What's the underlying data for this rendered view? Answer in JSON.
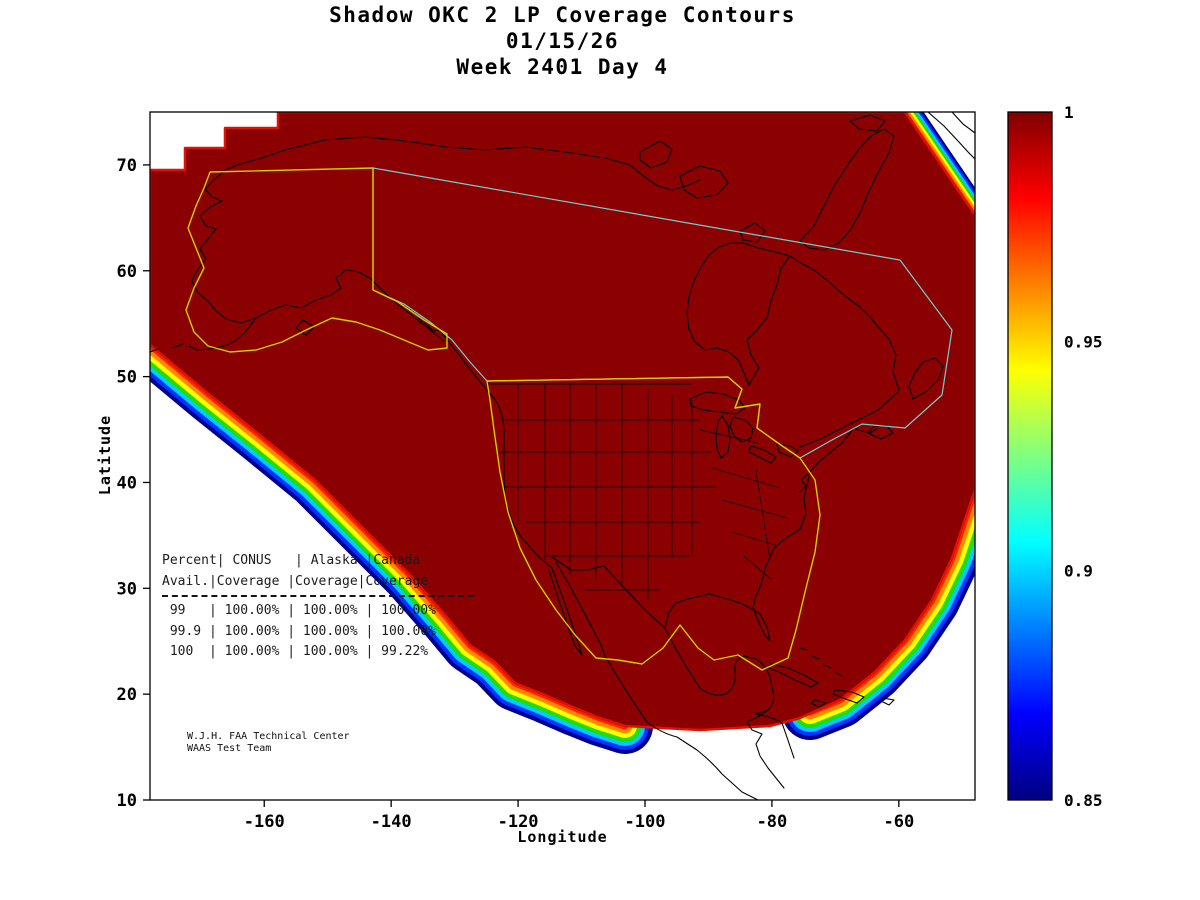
{
  "chart_data": {
    "type": "heatmap",
    "title": "Shadow OKC 2 LP Coverage Contours",
    "date": "01/15/26",
    "week_day": "Week 2401 Day 4",
    "xlabel": "Longitude",
    "ylabel": "Latitude",
    "x_axis": {
      "ticks": [
        -160,
        -140,
        -120,
        -100,
        -80,
        -60
      ],
      "range": [
        -178,
        -48
      ]
    },
    "y_axis": {
      "ticks": [
        70,
        60,
        50,
        40,
        30,
        20,
        10
      ],
      "range": [
        10,
        75
      ]
    },
    "colorbar": {
      "colormap": "jet",
      "min": 0.85,
      "max": 1,
      "tick_values": [
        1,
        0.95,
        0.9,
        0.85
      ],
      "tick_labels": [
        "1",
        "0.95",
        "0.9",
        "0.85"
      ]
    },
    "coverage_fill_color": "#8B0000",
    "contour_range": [
      0.85,
      1
    ],
    "table": {
      "lines": [
        "Percent| CONUS   | Alaska |Canada",
        "Avail.|Coverage |Coverage|Coverage",
        " 99   | 100.00% | 100.00% | 100.00%",
        " 99.9 | 100.00% | 100.00% | 100.00%",
        " 100  | 100.00% | 100.00% | 99.22%"
      ],
      "columns": [
        "Percent Avail.",
        "CONUS Coverage",
        "Alaska Coverage",
        "Canada Coverage"
      ],
      "rows": [
        [
          "99",
          "100.00%",
          "100.00%",
          "100.00%"
        ],
        [
          "99.9",
          "100.00%",
          "100.00%",
          "100.00%"
        ],
        [
          "100",
          "100.00%",
          "100.00%",
          "99.22%"
        ]
      ]
    },
    "attribution": [
      "W.J.H. FAA Technical Center",
      "WAAS Test Team"
    ],
    "regions_outlined": [
      "CONUS boundary (yellow)",
      "Alaska boundary (yellow)",
      "Canada boundary (cyan)"
    ]
  }
}
